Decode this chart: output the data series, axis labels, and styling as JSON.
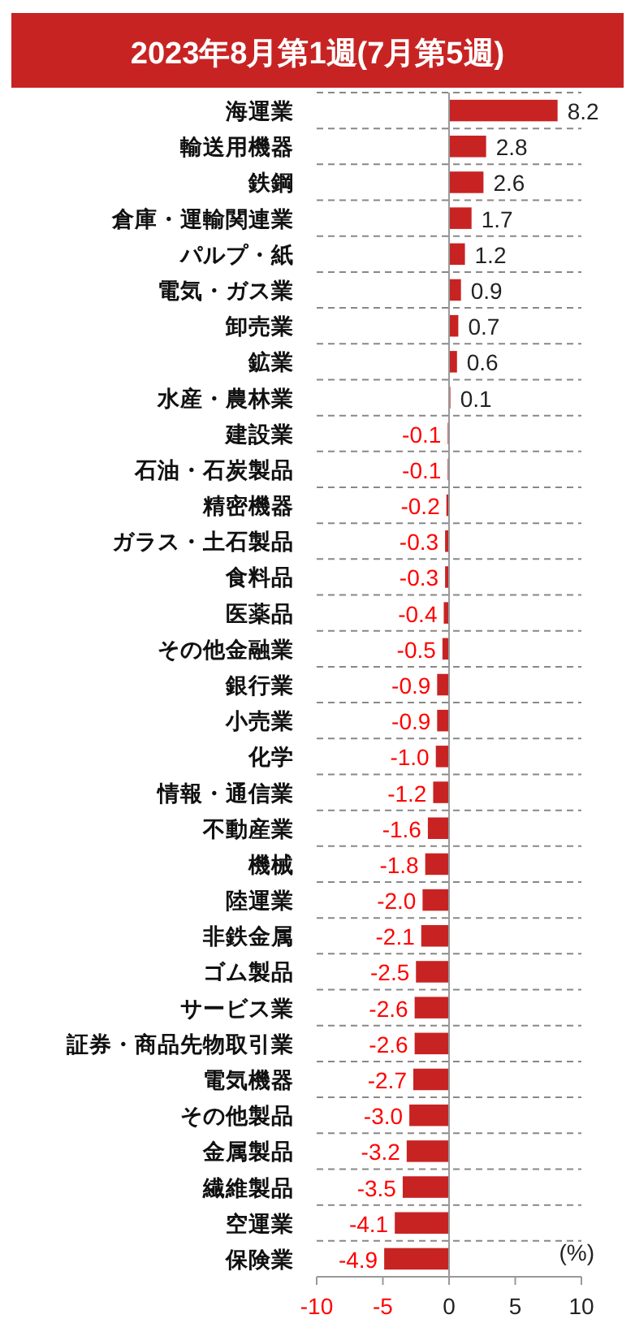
{
  "chart_data": {
    "type": "bar",
    "orientation": "horizontal",
    "title": "2023年8月第1週(7月第5週)",
    "categories": [
      "海運業",
      "輸送用機器",
      "鉄鋼",
      "倉庫・運輸関連業",
      "パルプ・紙",
      "電気・ガス業",
      "卸売業",
      "鉱業",
      "水産・農林業",
      "建設業",
      "石油・石炭製品",
      "精密機器",
      "ガラス・土石製品",
      "食料品",
      "医薬品",
      "その他金融業",
      "銀行業",
      "小売業",
      "化学",
      "情報・通信業",
      "不動産業",
      "機械",
      "陸運業",
      "非鉄金属",
      "ゴム製品",
      "サービス業",
      "証券・商品先物取引業",
      "電気機器",
      "その他製品",
      "金属製品",
      "繊維製品",
      "空運業",
      "保険業"
    ],
    "values": [
      8.2,
      2.8,
      2.6,
      1.7,
      1.2,
      0.9,
      0.7,
      0.6,
      0.1,
      -0.1,
      -0.1,
      -0.2,
      -0.3,
      -0.3,
      -0.4,
      -0.5,
      -0.9,
      -0.9,
      -1.0,
      -1.2,
      -1.6,
      -1.8,
      -2.0,
      -2.1,
      -2.5,
      -2.6,
      -2.6,
      -2.7,
      -3.0,
      -3.2,
      -3.5,
      -4.1,
      -4.9
    ],
    "value_labels": [
      "8.2",
      "2.8",
      "2.6",
      "1.7",
      "1.2",
      "0.9",
      "0.7",
      "0.6",
      "0.1",
      "-0.1",
      "-0.1",
      "-0.2",
      "-0.3",
      "-0.3",
      "-0.4",
      "-0.5",
      "-0.9",
      "-0.9",
      "-1.0",
      "-1.2",
      "-1.6",
      "-1.8",
      "-2.0",
      "-2.1",
      "-2.5",
      "-2.6",
      "-2.6",
      "-2.7",
      "-3.0",
      "-3.2",
      "-3.5",
      "-4.1",
      "-4.9"
    ],
    "color": "#c82323",
    "xlim": [
      -10,
      10
    ],
    "xticks": [
      -10,
      -5,
      0,
      5,
      10
    ],
    "grid": "y",
    "annotations": [
      "(%)"
    ]
  }
}
